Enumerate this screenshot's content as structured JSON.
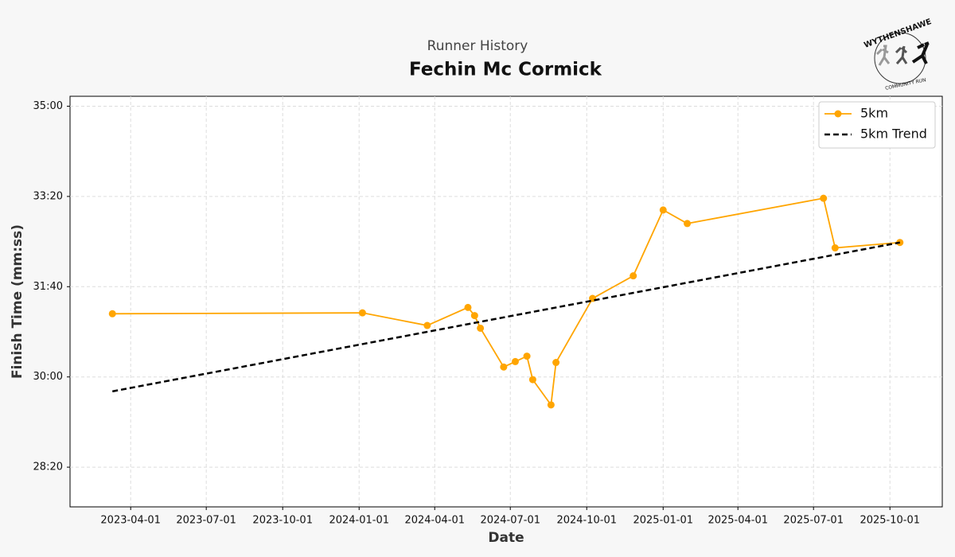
{
  "chart_data": {
    "type": "line",
    "subtitle": "Runner History",
    "title": "Fechin Mc Cormick",
    "x_label": "Date",
    "y_label": "Finish Time (mm:ss)",
    "logo": {
      "top_text": "WYTHENSHAWE",
      "bottom_text": "COMMUNITY RUN"
    },
    "x": [
      "2023-03-10",
      "2024-01-05",
      "2024-03-23",
      "2024-05-11",
      "2024-05-19",
      "2024-05-26",
      "2024-06-23",
      "2024-07-07",
      "2024-07-21",
      "2024-07-28",
      "2024-08-19",
      "2024-08-25",
      "2024-10-08",
      "2024-11-26",
      "2025-01-01",
      "2025-01-30",
      "2025-07-13",
      "2025-07-27",
      "2025-10-13"
    ],
    "series": [
      {
        "name": "5km",
        "color": "#ffa500",
        "values": [
          1870,
          1871,
          1857,
          1877,
          1868,
          1854,
          1811,
          1817,
          1823,
          1797,
          1769,
          1816,
          1887,
          1912,
          1985,
          1970,
          1998,
          1943,
          1949
        ]
      },
      {
        "name": "5km Trend",
        "color": "#000000",
        "x": [
          "2023-03-10",
          "2025-10-13"
        ],
        "values": [
          1784,
          1949
        ]
      }
    ],
    "xlim": [
      "2023-01-18",
      "2025-12-03"
    ],
    "xticks": [
      "2023-04-01",
      "2023-07-01",
      "2023-10-01",
      "2024-01-01",
      "2024-04-01",
      "2024-07-01",
      "2024-10-01",
      "2025-01-01",
      "2025-04-01",
      "2025-07-01",
      "2025-10-01"
    ],
    "ylim": [
      1656,
      2111
    ],
    "yticks": [
      {
        "value": 1700,
        "label": "28:20"
      },
      {
        "value": 1800,
        "label": "30:00"
      },
      {
        "value": 1900,
        "label": "31:40"
      },
      {
        "value": 2000,
        "label": "33:20"
      },
      {
        "value": 2100,
        "label": "35:00"
      }
    ],
    "grid": true,
    "legend": "upper right"
  }
}
